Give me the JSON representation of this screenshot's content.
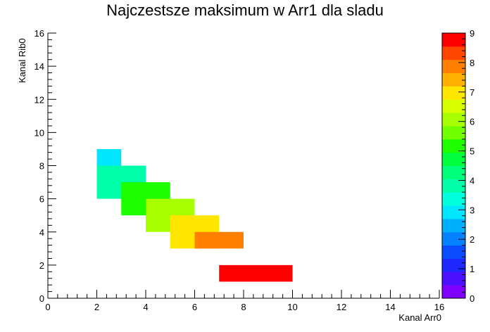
{
  "chart_data": {
    "type": "heatmap",
    "title": "Najczestsze maksimum w Arr1 dla sladu",
    "xlabel": "Kanal Arr0",
    "ylabel": "Kanal Rib0",
    "xlim": [
      0,
      16
    ],
    "ylim": [
      0,
      16
    ],
    "x_ticks": [
      "0",
      "2",
      "4",
      "6",
      "8",
      "10",
      "12",
      "14",
      "16"
    ],
    "y_ticks": [
      "0",
      "2",
      "4",
      "6",
      "8",
      "10",
      "12",
      "14",
      "16"
    ],
    "z_range": [
      0,
      9
    ],
    "z_ticks": [
      "0",
      "1",
      "2",
      "3",
      "4",
      "5",
      "6",
      "7",
      "8",
      "9"
    ],
    "grid": false,
    "colorbar_position": "right",
    "palette": [
      "#7f00ff",
      "#4a10ff",
      "#1e28ff",
      "#0a4cff",
      "#0582ff",
      "#00b0ff",
      "#00e6ff",
      "#00ffdc",
      "#00ffa8",
      "#00ff7a",
      "#00ff3c",
      "#1eff00",
      "#72ff00",
      "#a8ff00",
      "#d8ff00",
      "#ffe600",
      "#ffb000",
      "#ff8000",
      "#ff4600",
      "#ff0000"
    ],
    "cells": [
      {
        "x0": 2,
        "x1": 3,
        "y0": 8,
        "y1": 9,
        "value": 3
      },
      {
        "x0": 2,
        "x1": 4,
        "y0": 6,
        "y1": 8,
        "value": 4
      },
      {
        "x0": 3,
        "x1": 5,
        "y0": 5,
        "y1": 7,
        "value": 5
      },
      {
        "x0": 4,
        "x1": 6,
        "y0": 4,
        "y1": 6,
        "value": 6
      },
      {
        "x0": 5,
        "x1": 7,
        "y0": 3,
        "y1": 5,
        "value": 7
      },
      {
        "x0": 6,
        "x1": 8,
        "y0": 3,
        "y1": 4,
        "value": 8
      },
      {
        "x0": 7,
        "x1": 10,
        "y0": 1,
        "y1": 2,
        "value": 9
      }
    ]
  }
}
